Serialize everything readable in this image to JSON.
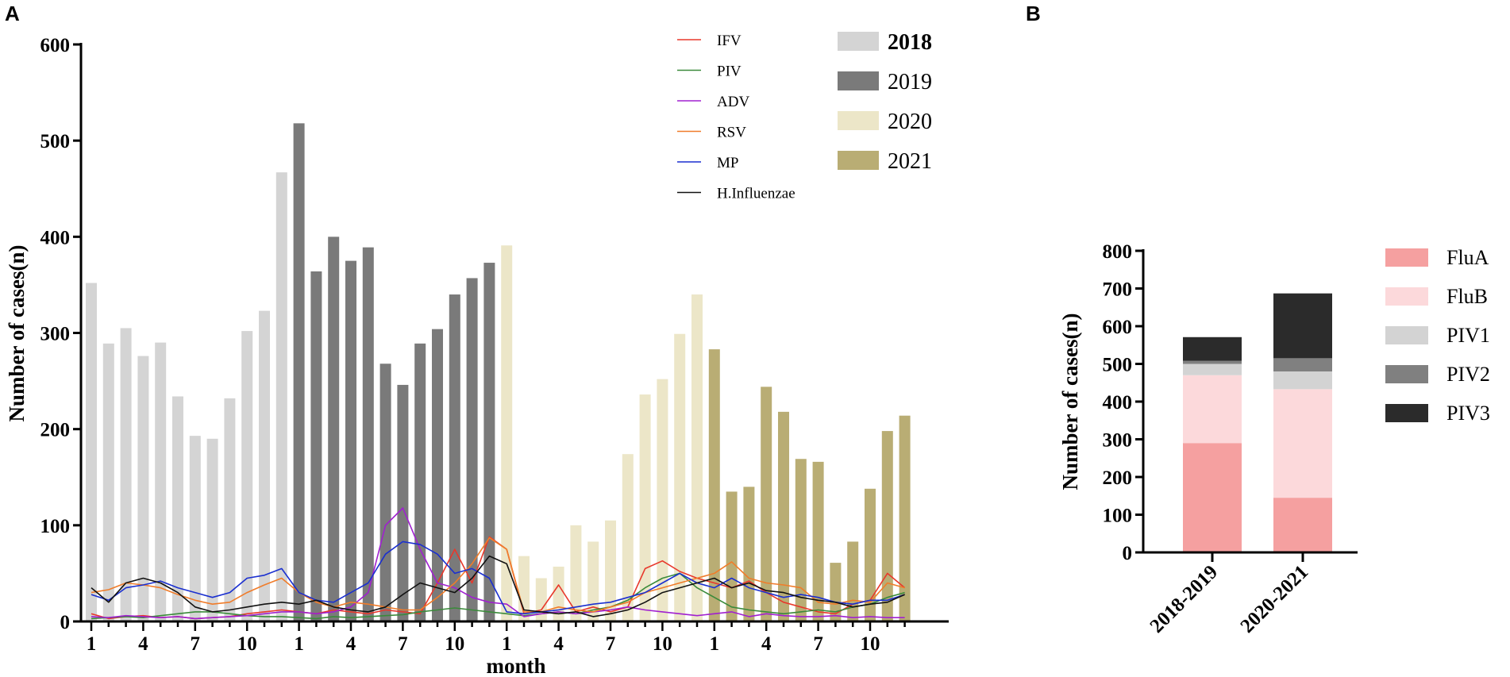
{
  "panels": {
    "a_letter": "A",
    "b_letter": "B"
  },
  "chart_data": [
    {
      "type": "bar",
      "title": "",
      "xlabel": "month",
      "ylabel": "Number of cases(n)",
      "ylim": [
        0,
        600
      ],
      "yticks": [
        "0",
        "100",
        "200",
        "300",
        "400",
        "500",
        "600"
      ],
      "xticks": [
        "1",
        "4",
        "7",
        "10",
        "1",
        "4",
        "7",
        "10",
        "1",
        "4",
        "7",
        "10",
        "1",
        "4",
        "7",
        "10"
      ],
      "xtick_months": [
        1,
        4,
        7,
        10
      ],
      "bar_series": [
        {
          "name": "2018",
          "color": "#d4d4d4",
          "bold": true,
          "values": [
            352,
            289,
            305,
            276,
            290,
            234,
            193,
            190,
            232,
            302,
            323,
            467
          ]
        },
        {
          "name": "2019",
          "color": "#7a7a7a",
          "bold": false,
          "values": [
            518,
            364,
            400,
            375,
            389,
            268,
            246,
            289,
            304,
            340,
            357,
            373
          ]
        },
        {
          "name": "2020",
          "color": "#ece6c8",
          "bold": false,
          "values": [
            391,
            68,
            45,
            57,
            100,
            83,
            105,
            174,
            236,
            252,
            299,
            340
          ]
        },
        {
          "name": "2021",
          "color": "#b9ad74",
          "bold": false,
          "values": [
            283,
            135,
            140,
            244,
            218,
            169,
            166,
            61,
            83,
            138,
            198,
            214
          ]
        }
      ],
      "line_series": [
        {
          "name": "IFV",
          "color": "#e8382b",
          "values": [
            8,
            3,
            5,
            6,
            4,
            5,
            3,
            4,
            5,
            8,
            10,
            12,
            10,
            8,
            12,
            10,
            8,
            12,
            10,
            8,
            40,
            75,
            40,
            88,
            75,
            8,
            12,
            38,
            10,
            15,
            10,
            15,
            55,
            63,
            52,
            45,
            40,
            35,
            42,
            30,
            20,
            15,
            10,
            8,
            18,
            22,
            50,
            35
          ]
        },
        {
          "name": "PIV",
          "color": "#3a8a3a",
          "values": [
            3,
            4,
            5,
            4,
            6,
            8,
            10,
            10,
            8,
            6,
            5,
            5,
            4,
            3,
            5,
            4,
            5,
            6,
            7,
            10,
            12,
            14,
            12,
            10,
            8,
            6,
            8,
            10,
            8,
            12,
            15,
            22,
            35,
            45,
            50,
            35,
            25,
            15,
            12,
            10,
            8,
            10,
            12,
            10,
            15,
            18,
            25,
            30
          ]
        },
        {
          "name": "ADV",
          "color": "#a020d0",
          "values": [
            5,
            4,
            6,
            5,
            4,
            5,
            3,
            4,
            5,
            6,
            8,
            10,
            10,
            8,
            10,
            15,
            30,
            100,
            118,
            75,
            40,
            35,
            25,
            20,
            18,
            5,
            8,
            10,
            8,
            10,
            12,
            15,
            12,
            10,
            8,
            6,
            8,
            10,
            5,
            8,
            6,
            5,
            5,
            6,
            4,
            5,
            4,
            4
          ]
        },
        {
          "name": "RSV",
          "color": "#f07c2a",
          "values": [
            30,
            33,
            40,
            38,
            35,
            28,
            22,
            18,
            20,
            30,
            38,
            45,
            30,
            20,
            15,
            20,
            18,
            15,
            12,
            12,
            25,
            40,
            60,
            87,
            75,
            10,
            10,
            15,
            12,
            10,
            15,
            20,
            30,
            35,
            40,
            45,
            50,
            62,
            45,
            40,
            38,
            35,
            20,
            18,
            22,
            20,
            40,
            35
          ]
        },
        {
          "name": "MP",
          "color": "#1a2fd0",
          "values": [
            28,
            22,
            35,
            38,
            42,
            35,
            30,
            25,
            30,
            45,
            48,
            55,
            30,
            22,
            20,
            30,
            40,
            70,
            83,
            80,
            70,
            50,
            55,
            45,
            10,
            8,
            10,
            12,
            15,
            18,
            20,
            25,
            30,
            40,
            50,
            40,
            35,
            45,
            35,
            30,
            25,
            28,
            25,
            20,
            18,
            22,
            22,
            28
          ]
        },
        {
          "name": "H.Influenzae",
          "color": "#111111",
          "values": [
            35,
            20,
            40,
            45,
            40,
            30,
            15,
            10,
            12,
            15,
            18,
            20,
            18,
            22,
            15,
            12,
            10,
            15,
            28,
            40,
            35,
            30,
            45,
            68,
            60,
            12,
            10,
            8,
            10,
            5,
            8,
            12,
            20,
            30,
            35,
            40,
            45,
            35,
            40,
            32,
            30,
            25,
            22,
            20,
            15,
            18,
            20,
            28
          ]
        }
      ]
    },
    {
      "type": "bar",
      "stacked": true,
      "title": "",
      "xlabel": "",
      "ylabel": "Number of cases(n)",
      "ylim": [
        0,
        800
      ],
      "yticks": [
        "0",
        "100",
        "200",
        "300",
        "400",
        "500",
        "600",
        "700",
        "800"
      ],
      "categories": [
        "2018-2019",
        "2020-2021"
      ],
      "series": [
        {
          "name": "FluA",
          "color": "#f5a0a0",
          "values": [
            290,
            145
          ]
        },
        {
          "name": "FluB",
          "color": "#fcd9db",
          "values": [
            180,
            288
          ]
        },
        {
          "name": "PIV1",
          "color": "#d3d3d3",
          "values": [
            30,
            47
          ]
        },
        {
          "name": "PIV2",
          "color": "#808080",
          "values": [
            8,
            35
          ]
        },
        {
          "name": "PIV3",
          "color": "#2b2b2b",
          "values": [
            63,
            172
          ]
        }
      ]
    }
  ]
}
